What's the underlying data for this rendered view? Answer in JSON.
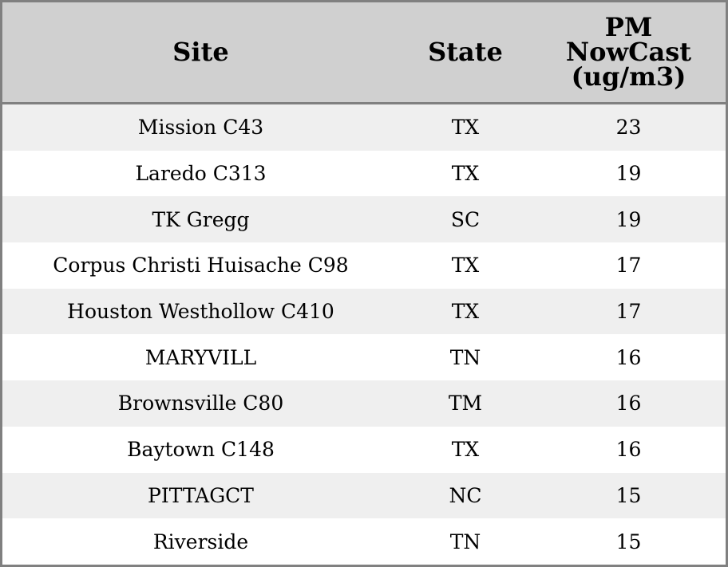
{
  "table": {
    "headers": [
      "Site",
      "State",
      "PM NowCast (ug/m3)"
    ],
    "header_lines_pm": [
      "PM",
      "NowCast",
      "(ug/m3)"
    ],
    "rows": [
      [
        "Mission C43",
        "TX",
        "23"
      ],
      [
        "Laredo C313",
        "TX",
        "19"
      ],
      [
        "TK Gregg",
        "SC",
        "19"
      ],
      [
        "Corpus Christi Huisache C98",
        "TX",
        "17"
      ],
      [
        "Houston Westhollow C410",
        "TX",
        "17"
      ],
      [
        "MARYVILL",
        "TN",
        "16"
      ],
      [
        "Brownsville C80",
        "TM",
        "16"
      ],
      [
        "Baytown C148",
        "TX",
        "16"
      ],
      [
        "PITTAGCT",
        "NC",
        "15"
      ],
      [
        "Riverside",
        "TN",
        "15"
      ]
    ]
  },
  "colors": {
    "header_bg": "#d0d0d0",
    "stripe": "#efefef",
    "border": "#808080"
  }
}
